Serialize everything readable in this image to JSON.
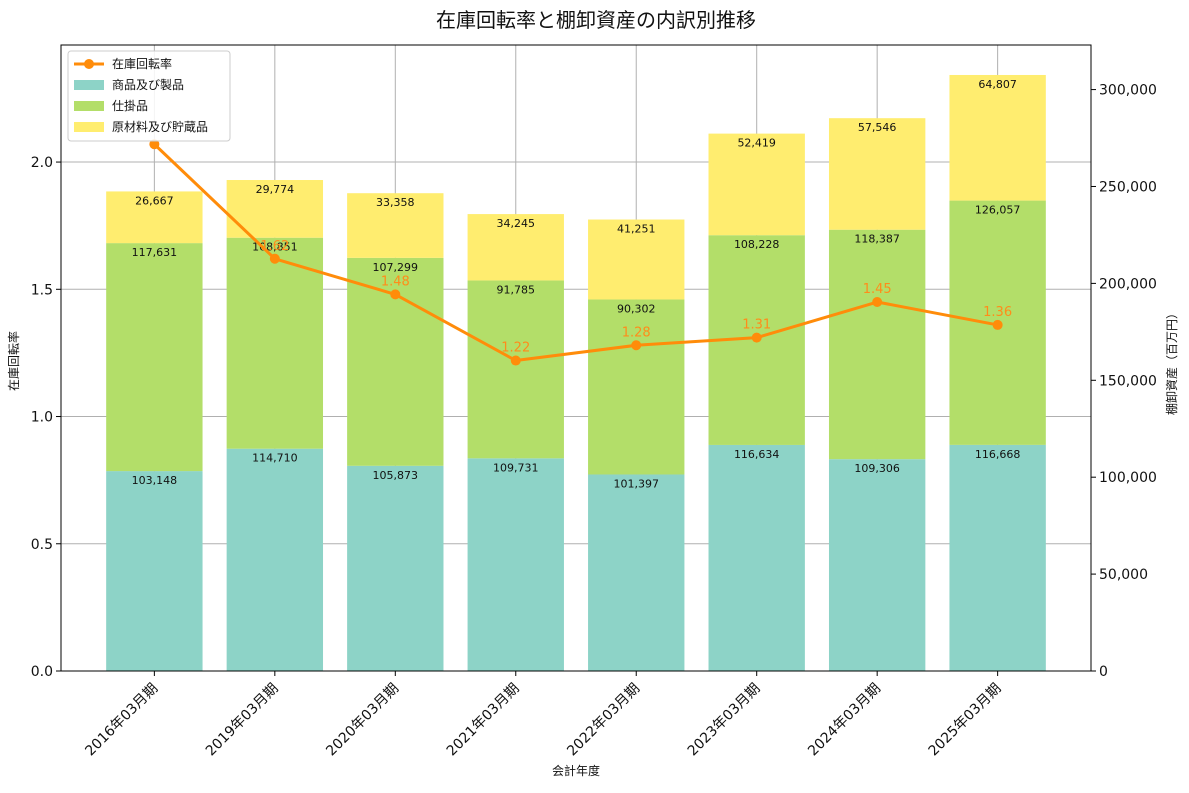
{
  "chart_data": {
    "type": "bar",
    "title": "在庫回転率と棚卸資産の内訳別推移",
    "xlabel": "会計年度",
    "ylabel_left": "在庫回転率",
    "ylabel_right": "棚卸資産（百万円）",
    "categories": [
      "2016年03月期",
      "2019年03月期",
      "2020年03月期",
      "2021年03月期",
      "2022年03月期",
      "2023年03月期",
      "2024年03月期",
      "2025年03月期"
    ],
    "series": [
      {
        "name": "商品及び製品",
        "axis": "right",
        "color": "#8dd3c7",
        "values": [
          103148,
          114710,
          105873,
          109731,
          101397,
          116634,
          109306,
          116668
        ],
        "labels": [
          "103,148",
          "114,710",
          "105,873",
          "109,731",
          "101,397",
          "116,634",
          "109,306",
          "116,668"
        ]
      },
      {
        "name": "仕掛品",
        "axis": "right",
        "color": "#b3de69",
        "values": [
          117631,
          108851,
          107299,
          91785,
          90302,
          108228,
          118387,
          126057
        ],
        "labels": [
          "117,631",
          "108,851",
          "107,299",
          "91,785",
          "90,302",
          "108,228",
          "118,387",
          "126,057"
        ]
      },
      {
        "name": "原材料及び貯蔵品",
        "axis": "right",
        "color": "#ffed6f",
        "values": [
          26667,
          29774,
          33358,
          34245,
          41251,
          52419,
          57546,
          64807
        ],
        "labels": [
          "26,667",
          "29,774",
          "33,358",
          "34,245",
          "41,251",
          "52,419",
          "57,546",
          "64,807"
        ]
      }
    ],
    "line": {
      "name": "在庫回転率",
      "axis": "left",
      "color": "#ff8c0a",
      "values": [
        2.07,
        1.62,
        1.48,
        1.22,
        1.28,
        1.31,
        1.45,
        1.36
      ],
      "labels": [
        "",
        "1.62",
        "1.48",
        "1.22",
        "1.28",
        "1.31",
        "1.45",
        "1.36"
      ]
    },
    "ylim_left": [
      0,
      2.46
    ],
    "yticks_left": [
      0.0,
      0.5,
      1.0,
      1.5,
      2.0
    ],
    "yticks_left_labels": [
      "0.0",
      "0.5",
      "1.0",
      "1.5",
      "2.0"
    ],
    "ylim_right": [
      0,
      323000
    ],
    "yticks_right": [
      0,
      50000,
      100000,
      150000,
      200000,
      250000,
      300000
    ],
    "yticks_right_labels": [
      "0",
      "50,000",
      "100,000",
      "150,000",
      "200,000",
      "250,000",
      "300,000"
    ],
    "legend": "top-left",
    "grid": true
  }
}
